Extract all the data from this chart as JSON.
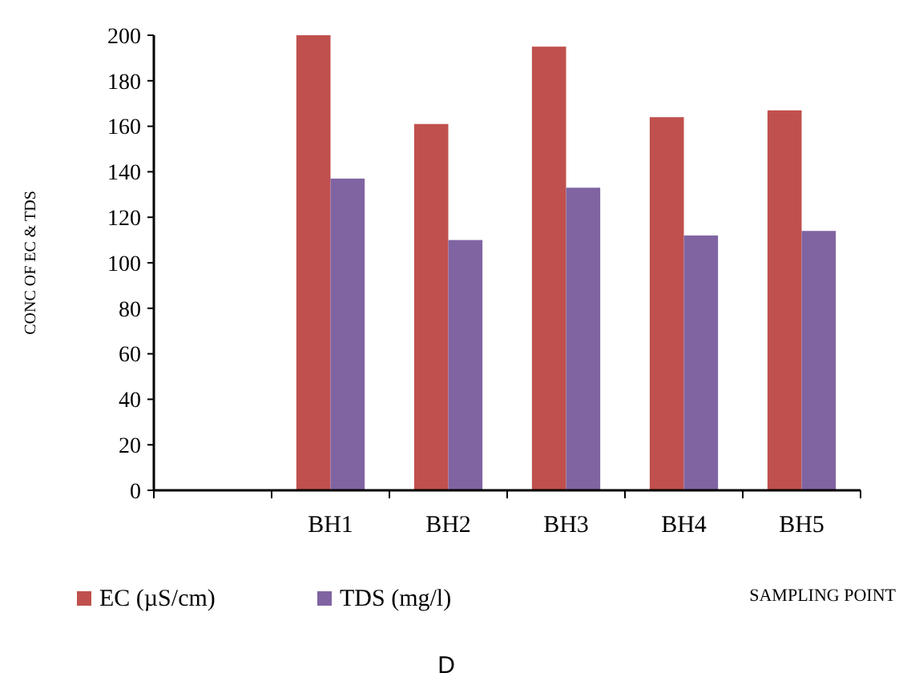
{
  "chart_data": {
    "type": "bar",
    "categories": [
      null,
      "BH1",
      "BH2",
      "BH3",
      "BH4",
      "BH5"
    ],
    "series": [
      {
        "name": "EC (µS/cm)",
        "color": "#c0504d",
        "values": [
          null,
          200,
          161,
          195,
          164,
          167
        ]
      },
      {
        "name": "TDS (mg/l)",
        "color": "#8064a2",
        "values": [
          null,
          137,
          110,
          133,
          112,
          114
        ]
      }
    ],
    "ylim": [
      0,
      200
    ],
    "yticks": [
      0,
      20,
      40,
      60,
      80,
      100,
      120,
      140,
      160,
      180,
      200
    ],
    "ylabel": "CONC OF EC & TDS",
    "xlabel": "SAMPLING POINT",
    "legend": "bottom",
    "grid": false,
    "annotations": [
      "D"
    ]
  }
}
